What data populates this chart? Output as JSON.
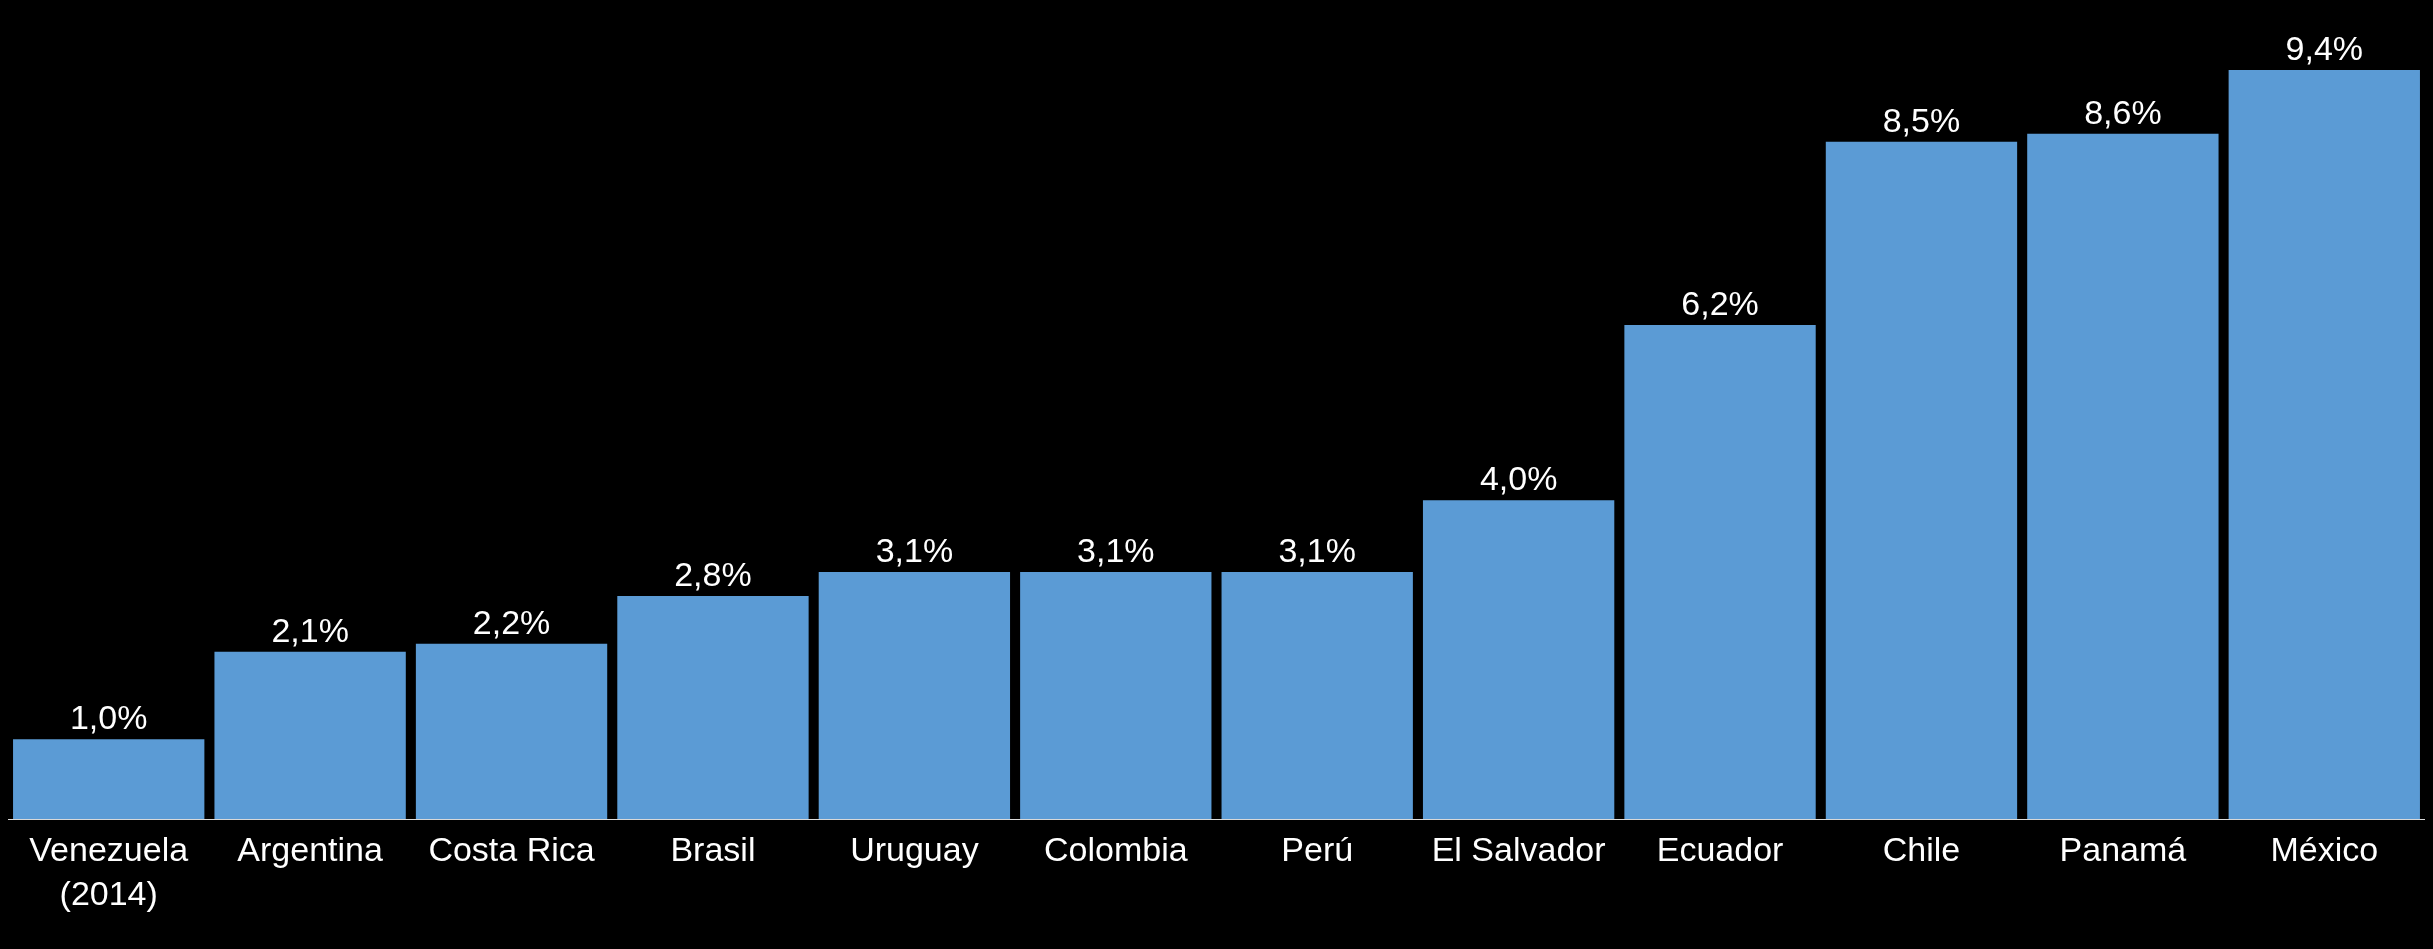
{
  "chart_data": {
    "type": "bar",
    "categories": [
      "Venezuela\n(2014)",
      "Argentina",
      "Costa Rica",
      "Brasil",
      "Uruguay",
      "Colombia",
      "Perú",
      "El Salvador",
      "Ecuador",
      "Chile",
      "Panamá",
      "México"
    ],
    "values": [
      1.0,
      2.1,
      2.2,
      2.8,
      3.1,
      3.1,
      3.1,
      4.0,
      6.2,
      8.5,
      8.6,
      9.4
    ],
    "value_labels": [
      "1,0%",
      "2,1%",
      "2,2%",
      "2,8%",
      "3,1%",
      "3,1%",
      "3,1%",
      "4,0%",
      "6,2%",
      "8,5%",
      "8,6%",
      "9,4%"
    ],
    "color": "#5b9bd5"
  }
}
